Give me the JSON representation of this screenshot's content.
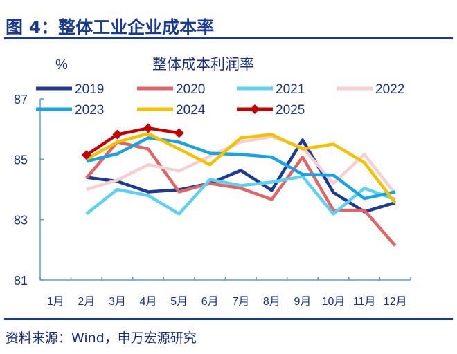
{
  "header": {
    "title": "图 4：整体工业企业成本率"
  },
  "footer": {
    "source": "资料来源：Wind，申万宏源研究"
  },
  "chart_data": {
    "type": "line",
    "title": "整体成本利润率",
    "ylabel": "%",
    "xlabel": "",
    "ylim": [
      81,
      87
    ],
    "yticks": [
      "81",
      "83",
      "85",
      "87"
    ],
    "categories": [
      "1月",
      "2月",
      "3月",
      "4月",
      "5月",
      "6月",
      "7月",
      "8月",
      "9月",
      "10月",
      "11月",
      "12月"
    ],
    "legend_position": "top",
    "grid": false,
    "series": [
      {
        "name": "2019",
        "color": "#1f3a93",
        "values": [
          null,
          84.4,
          84.27,
          83.92,
          83.99,
          84.2,
          84.63,
          83.97,
          85.64,
          83.9,
          83.26,
          83.56
        ]
      },
      {
        "name": "2020",
        "color": "#e06666",
        "values": [
          null,
          84.38,
          85.57,
          85.34,
          83.92,
          84.2,
          84.04,
          83.67,
          85.07,
          83.31,
          83.31,
          82.14
        ]
      },
      {
        "name": "2021",
        "color": "#5fd0f2",
        "values": [
          null,
          83.19,
          84.0,
          83.8,
          83.19,
          84.33,
          84.13,
          84.24,
          84.43,
          83.19,
          84.04,
          83.67
        ]
      },
      {
        "name": "2022",
        "color": "#f6d0d0",
        "values": [
          null,
          84.0,
          84.31,
          84.82,
          84.61,
          85.1,
          85.57,
          85.75,
          85.39,
          84.2,
          85.16,
          83.86
        ]
      },
      {
        "name": "2023",
        "color": "#1aa3e0",
        "values": [
          null,
          84.93,
          85.18,
          85.71,
          85.57,
          85.2,
          85.16,
          85.07,
          84.5,
          84.47,
          83.7,
          83.92
        ]
      },
      {
        "name": "2024",
        "color": "#f5c000",
        "values": [
          null,
          85.0,
          85.57,
          85.85,
          85.34,
          84.82,
          85.71,
          85.82,
          85.34,
          85.5,
          84.89,
          83.56
        ]
      },
      {
        "name": "2025",
        "color": "#c00000",
        "marker": "diamond",
        "values": [
          null,
          85.14,
          85.82,
          86.03,
          85.87,
          null,
          null,
          null,
          null,
          null,
          null,
          null
        ]
      }
    ]
  }
}
